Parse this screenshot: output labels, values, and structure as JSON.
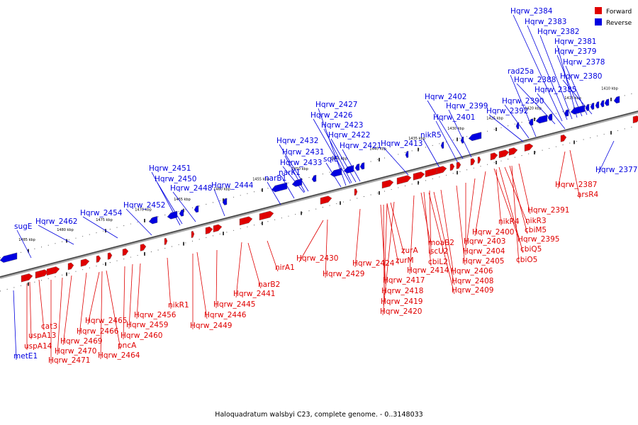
{
  "caption": "Haloquadratum walsbyi C23, complete genome. - 0..3148033",
  "legend": {
    "forward_label": "Forward",
    "reverse_label": "Reverse",
    "forward_color": "#e00000",
    "reverse_color": "#0000e0"
  },
  "ticks": [
    "1485 kbp",
    "1480 kbp",
    "1475 kbp",
    "1470 kbp",
    "1465 kbp",
    "1460 kbp",
    "1455 kbp",
    "1450 kbp",
    "1445 kbp",
    "1440 kbp",
    "1435 kbp",
    "1430 kbp",
    "1425 kbp",
    "1420 kbp",
    "1415 kbp",
    "1410 kbp"
  ],
  "reverse_genes": [
    "Hqrw_2384",
    "Hqrw_2383",
    "Hqrw_2382",
    "Hqrw_2381",
    "Hqrw_2379",
    "Hqrw_2378",
    "rad25a",
    "Hqrw_2388",
    "Hqrw_2380",
    "Hqrw_2385",
    "Hqrw_2402",
    "Hqrw_2390",
    "Hqrw_2399",
    "Hqrw_2392",
    "Hqrw_2401",
    "Hqrw_2427",
    "Hqrw_2426",
    "nikR5",
    "Hqrw_2423",
    "Hqrw_2422",
    "Hqrw_2432",
    "Hqrw_2413",
    "Hqrw_2421",
    "Hqrw_2431",
    "sqlE",
    "Hqrw_2433",
    "narK1",
    "Hqrw_2451",
    "Hqrw_2450",
    "narB1",
    "Hqrw_2448",
    "Hqrw_2444",
    "Hqrw_2452",
    "Hqrw_2454",
    "Hqrw_2462",
    "sugE",
    "Hqrw_2377",
    "metE1"
  ],
  "forward_genes": [
    "Hqrw_2387",
    "arsR4",
    "Hqrw_2391",
    "nikR4",
    "nikR3",
    "Hqrw_2400",
    "cbiM5",
    "Hqrw_2395",
    "moaB2",
    "Hqrw_2403",
    "cbiQ5",
    "iscU2",
    "Hqrw_2404",
    "cbiO5",
    "zurA",
    "cbiL2",
    "Hqrw_2405",
    "zurM",
    "Hqrw_2414",
    "Hqrw_2406",
    "Hqrw_2430",
    "Hqrw_2424",
    "Hqrw_2417",
    "Hqrw_2408",
    "Hqrw_2429",
    "Hqrw_2409",
    "Hqrw_2418",
    "nirA1",
    "Hqrw_2419",
    "Hqrw_2420",
    "narB2",
    "Hqrw_2441",
    "Hqrw_2445",
    "nikR1",
    "Hqrw_2446",
    "Hqrw_2456",
    "Hqrw_2449",
    "Hqrw_2465",
    "Hqrw_2459",
    "Hqrw_2466",
    "cat3",
    "Hqrw_2460",
    "uspA13",
    "Hqrw_2469",
    "pncA",
    "uspA14",
    "Hqrw_2470",
    "Hqrw_2464",
    "Hqrw_2471"
  ]
}
